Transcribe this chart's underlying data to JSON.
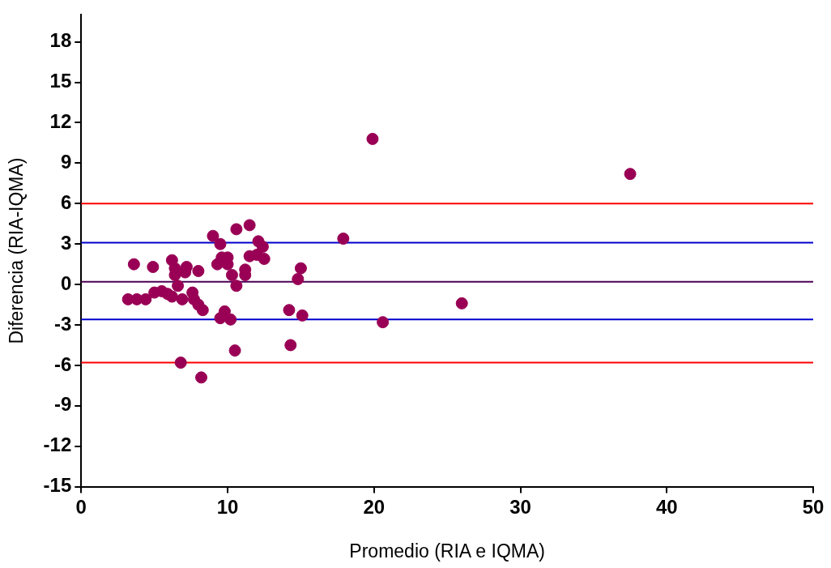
{
  "chart_data": {
    "type": "scatter",
    "xlabel": "Promedio (RIA e IQMA)",
    "ylabel": "Diferencia (RIA-IQMA)",
    "xlim": [
      0,
      50
    ],
    "xticks": [
      0,
      10,
      20,
      30,
      40,
      50
    ],
    "ylim": [
      -15,
      20
    ],
    "yticks": [
      -15,
      -12,
      -9,
      -6,
      -3,
      0,
      3,
      6,
      9,
      12,
      15,
      18
    ],
    "grid": false,
    "legend": false,
    "marker": "circle",
    "series": [
      {
        "color": "#990055",
        "x": [
          3.2,
          3.6,
          3.8,
          4.4,
          4.9,
          5.0,
          5.5,
          5.9,
          6.2,
          6.2,
          6.4,
          6.4,
          6.6,
          6.9,
          7.1,
          7.2,
          6.8,
          7.6,
          7.7,
          8.0,
          8.3,
          8.0,
          8.2,
          9.0,
          9.5,
          9.3,
          9.6,
          10.0,
          10.0,
          10.3,
          10.6,
          10.6,
          11.5,
          11.2,
          11.2,
          11.5,
          12.0,
          12.1,
          12.4,
          12.5,
          9.5,
          9.8,
          10.2,
          10.5,
          14.2,
          14.3,
          14.8,
          15.0,
          15.1,
          17.9,
          19.9,
          20.6,
          26.0,
          37.5
        ],
        "values": [
          -1.1,
          1.5,
          -1.1,
          -1.1,
          1.3,
          -0.6,
          -0.5,
          -0.7,
          -0.9,
          1.8,
          1.2,
          0.7,
          -0.1,
          -1.1,
          0.9,
          1.3,
          -5.8,
          -0.6,
          -1.1,
          -1.5,
          -1.9,
          1.0,
          -6.9,
          3.6,
          3.0,
          1.5,
          2.0,
          2.0,
          1.5,
          0.7,
          4.1,
          -0.1,
          4.4,
          1.1,
          0.7,
          2.1,
          2.2,
          3.2,
          2.8,
          1.9,
          -2.5,
          -2.0,
          -2.6,
          -4.9,
          -1.9,
          -4.5,
          0.4,
          1.2,
          -2.3,
          3.4,
          10.8,
          -2.8,
          -1.4,
          8.2
        ]
      }
    ],
    "ref_lines": [
      {
        "axis": "y",
        "value": 6.0,
        "color": "#ff0000"
      },
      {
        "axis": "y",
        "value": -5.8,
        "color": "#ff0000"
      },
      {
        "axis": "y",
        "value": 3.1,
        "color": "#0000cc"
      },
      {
        "axis": "y",
        "value": -2.6,
        "color": "#0000cc"
      },
      {
        "axis": "y",
        "value": 0.2,
        "color": "#4b0055"
      }
    ]
  }
}
